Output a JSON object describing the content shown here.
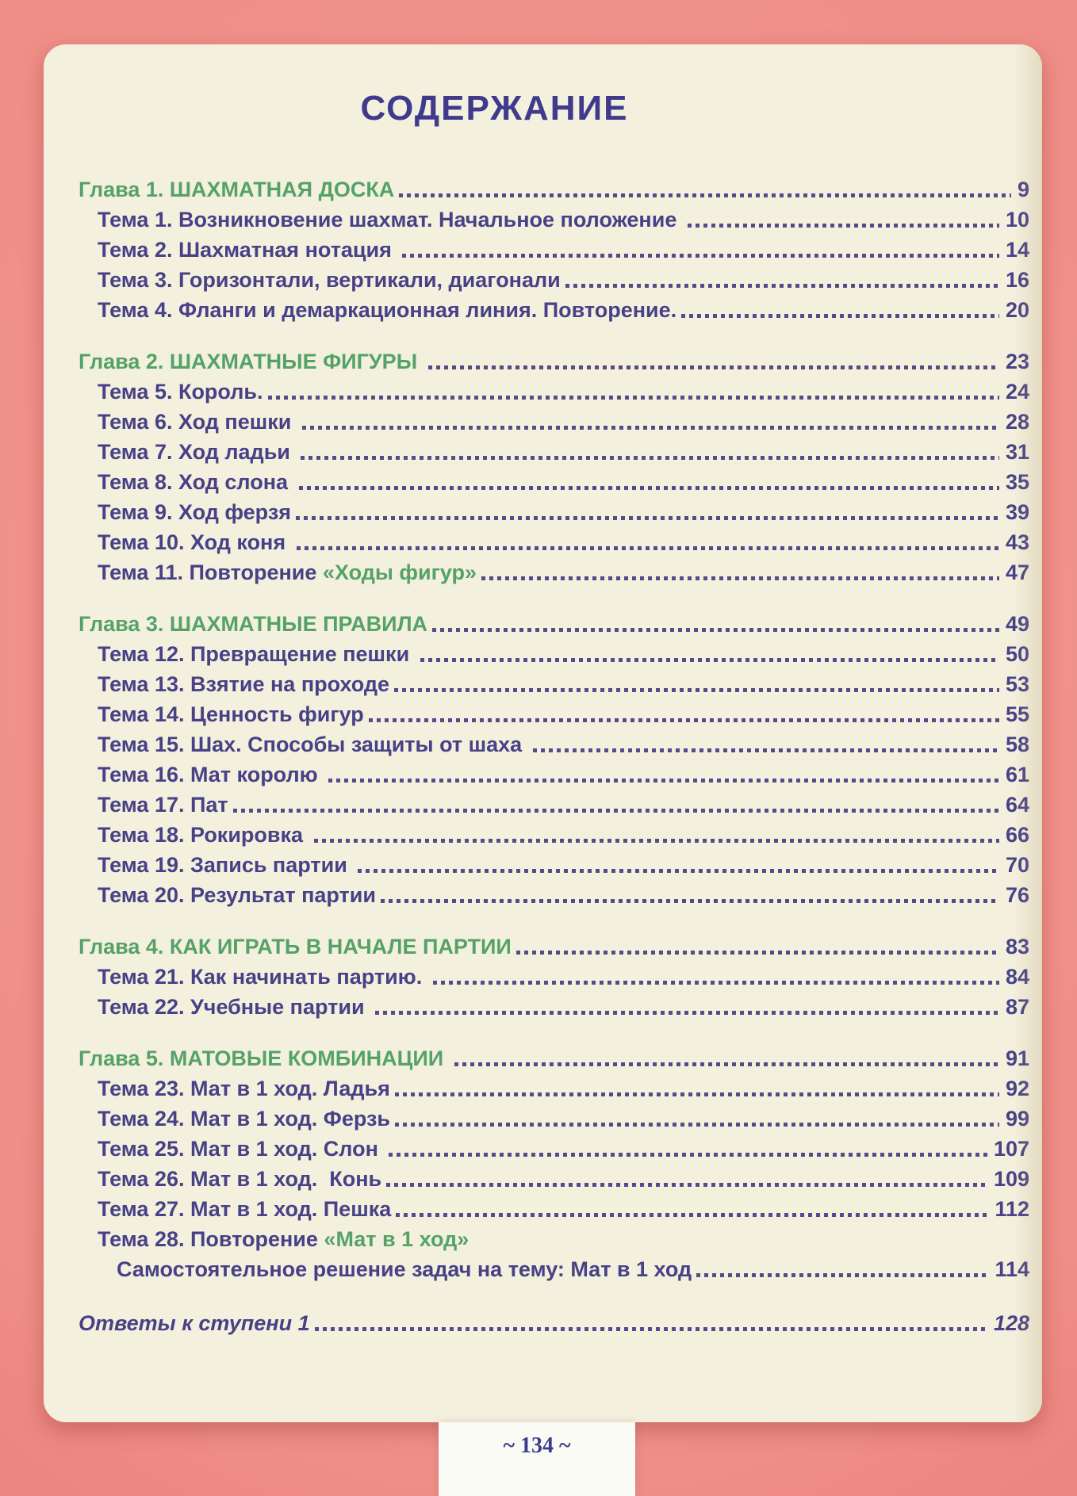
{
  "title": "СОДЕРЖАНИЕ",
  "colors": {
    "background_pink": "#ef8d87",
    "page_cream": "#f4f0de",
    "text_navy": "#474187",
    "heading_green": "#55a268"
  },
  "toc": {
    "sections": [
      {
        "heading": {
          "pre": "Глава 1. ШАХМАТНАЯ ДОСКА",
          "page": "9"
        },
        "items": [
          {
            "pre": "Тема 1. Возникновение шахмат. Начальное положение ",
            "page": "10"
          },
          {
            "pre": "Тема 2. Шахматная нотация ",
            "page": "14"
          },
          {
            "pre": "Тема 3. Горизонтали, вертикали, диагонали",
            "page": "16"
          },
          {
            "pre": "Тема 4. Фланги и демаркационная линия. Повторение.",
            "page": "20"
          }
        ]
      },
      {
        "heading": {
          "pre": "Глава 2. ШАХМАТНЫЕ ФИГУРЫ ",
          "page": "23"
        },
        "items": [
          {
            "pre": "Тема 5. Король.",
            "page": "24"
          },
          {
            "pre": "Тема 6. Ход пешки ",
            "page": "28"
          },
          {
            "pre": "Тема 7. Ход ладьи ",
            "page": "31"
          },
          {
            "pre": "Тема 8. Ход слона ",
            "page": "35"
          },
          {
            "pre": "Тема 9. Ход ферзя",
            "page": "39"
          },
          {
            "pre": "Тема 10. Ход коня ",
            "page": "43"
          },
          {
            "pre": "Тема 11. Повторение ",
            "green": "«Ходы фигур»",
            "page": "47"
          }
        ]
      },
      {
        "heading": {
          "pre": "Глава 3. ШАХМАТНЫЕ ПРАВИЛА",
          "page": "49"
        },
        "items": [
          {
            "pre": "Тема 12. Превращение пешки ",
            "page": "50"
          },
          {
            "pre": "Тема 13. Взятие на проходе",
            "page": "53"
          },
          {
            "pre": "Тема 14. Ценность фигур",
            "page": "55"
          },
          {
            "pre": "Тема 15. Шах. Способы защиты от шаха ",
            "page": "58"
          },
          {
            "pre": "Тема 16. Мат королю ",
            "page": "61"
          },
          {
            "pre": "Тема 17. Пат",
            "page": "64"
          },
          {
            "pre": "Тема 18. Рокировка ",
            "page": "66"
          },
          {
            "pre": "Тема 19. Запись партии ",
            "page": "70"
          },
          {
            "pre": "Тема 20. Результат партии",
            "page": "76"
          }
        ]
      },
      {
        "heading": {
          "pre": "Глава 4. КАК ИГРАТЬ В НАЧАЛЕ ПАРТИИ",
          "page": "83"
        },
        "items": [
          {
            "pre": "Тема 21. Как начинать партию. ",
            "page": "84"
          },
          {
            "pre": "Тема 22. Учебные партии ",
            "page": "87"
          }
        ]
      },
      {
        "heading": {
          "pre": "Глава 5. МАТОВЫЕ КОМБИНАЦИИ ",
          "page": "91"
        },
        "items": [
          {
            "pre": "Тема 23. Мат в 1 ход. Ладья",
            "page": "92"
          },
          {
            "pre": "Тема 24. Мат в 1 ход. Ферзь",
            "page": "99"
          },
          {
            "pre": "Тема 25. Мат в 1 ход. Слон ",
            "page": "107"
          },
          {
            "pre": "Тема 26. Мат в 1 ход.  Конь",
            "page": "109"
          },
          {
            "pre": "Тема 27. Мат в 1 ход. Пешка",
            "page": "112"
          },
          {
            "pre": "Тема 28. Повторение ",
            "green": "«Мат в 1 ход»",
            "page": "",
            "no_dots": true
          },
          {
            "pre": "Самостоятельное решение задач на тему: Мат в 1 ход",
            "page": "114",
            "continuation": true
          }
        ]
      }
    ],
    "answers": {
      "pre": "Ответы к ступени 1",
      "page": "128"
    }
  },
  "footer": {
    "page_number": "~ 134 ~"
  }
}
